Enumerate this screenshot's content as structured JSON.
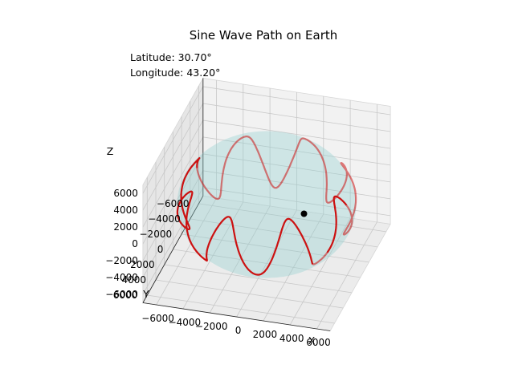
{
  "chart_data": {
    "type": "line",
    "title": "Sine Wave Path on Earth",
    "annotations": {
      "latitude": "Latitude: 30.70°",
      "longitude": "Longitude: 43.20°"
    },
    "xlabel": "X",
    "ylabel": "Y",
    "zlabel": "Z",
    "xlim": [
      -7000,
      7000
    ],
    "ylim": [
      -7000,
      7000
    ],
    "zlim": [
      -7000,
      7000
    ],
    "xticks": [
      -6000,
      -4000,
      -2000,
      0,
      2000,
      4000,
      6000
    ],
    "yticks": [
      -6000,
      -4000,
      -2000,
      0,
      2000,
      4000,
      6000
    ],
    "zticks": [
      -6000,
      -4000,
      -2000,
      0,
      2000,
      4000,
      6000
    ],
    "xtick_labels": [
      "−6000",
      "−4000",
      "−2000",
      "0",
      "2000",
      "4000",
      "6000"
    ],
    "ytick_labels": [
      "−6000",
      "−4000",
      "−2000",
      "0",
      "2000",
      "4000",
      "6000"
    ],
    "ztick_labels": [
      "−6000",
      "−4000",
      "−2000",
      "0",
      "2000",
      "4000",
      "6000"
    ],
    "grid": true,
    "sphere": {
      "radius": 6371,
      "color": "#8ccfcf",
      "opacity": 0.35
    },
    "path": {
      "color": "#cc1111",
      "base_latitude": 0,
      "amplitude_deg": 30,
      "cycles": 8
    },
    "marker": {
      "color": "#000000",
      "latitude": 30.7,
      "longitude": 43.2
    }
  }
}
